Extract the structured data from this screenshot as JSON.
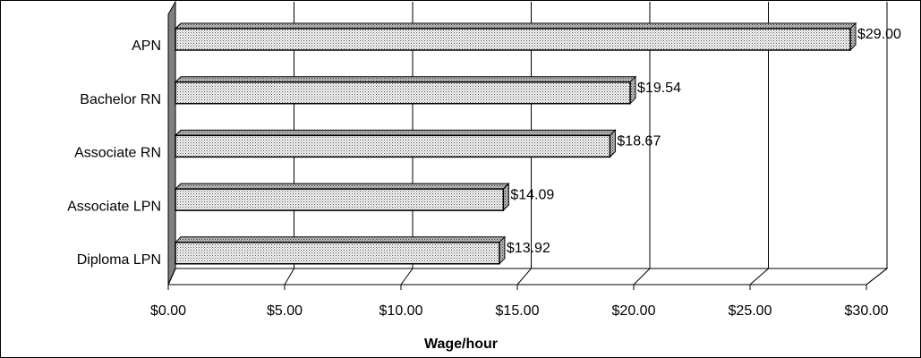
{
  "chart_data": {
    "type": "bar",
    "orientation": "horizontal",
    "xlabel": "Wage/hour",
    "categories": [
      "APN",
      "Bachelor RN",
      "Associate RN",
      "Associate LPN",
      "Diploma LPN"
    ],
    "values": [
      29.0,
      19.54,
      18.67,
      14.09,
      13.92
    ],
    "value_labels": [
      "$29.00",
      "$19.54",
      "$18.67",
      "$14.09",
      "$13.92"
    ],
    "xlim": [
      0,
      30
    ],
    "xticks": [
      {
        "value": 0,
        "label": "$0.00"
      },
      {
        "value": 5,
        "label": "$5.00"
      },
      {
        "value": 10,
        "label": "$10.00"
      },
      {
        "value": 15,
        "label": "$15.00"
      },
      {
        "value": 20,
        "label": "$20.00"
      },
      {
        "value": 25,
        "label": "$25.00"
      },
      {
        "value": 30,
        "label": "$30.00"
      }
    ],
    "grid": true
  }
}
